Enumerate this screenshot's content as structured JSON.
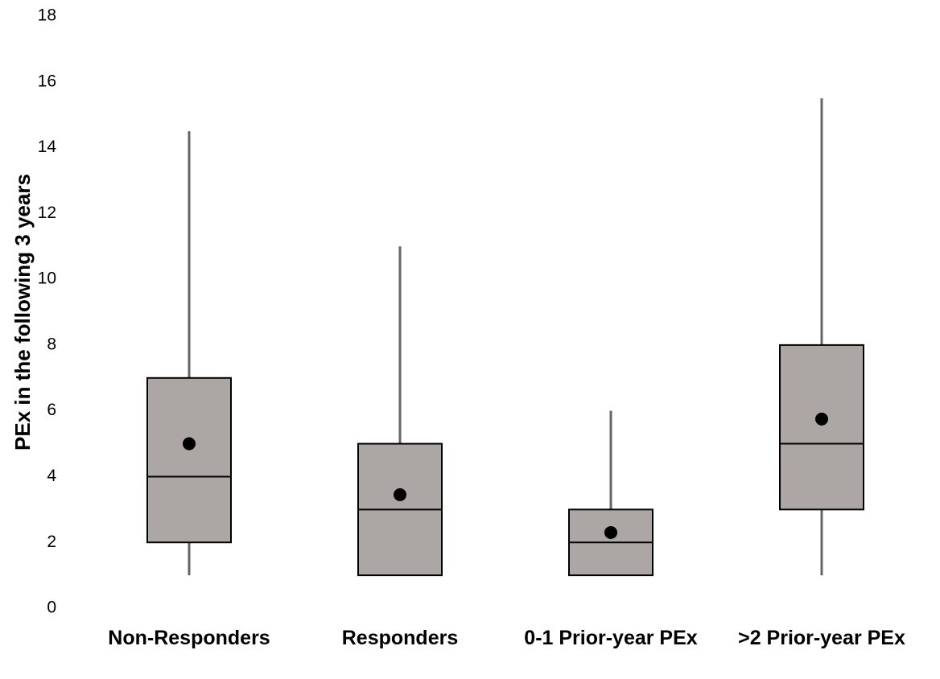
{
  "chart_data": {
    "type": "box",
    "y_label": "PEx in the following 3 years",
    "categories": [
      "Non-Responders",
      "Responders",
      "0-1 Prior-year PEx",
      ">2 Prior-year PEx"
    ],
    "min": [
      1,
      1,
      1,
      1
    ],
    "q1": [
      2,
      1,
      1,
      3
    ],
    "median": [
      4,
      3,
      2,
      5
    ],
    "q3": [
      7,
      5,
      3,
      8
    ],
    "max": [
      14.5,
      11,
      6,
      15.5
    ],
    "mean": [
      5,
      3.45,
      2.3,
      5.75
    ],
    "box_color": "#aca7a5",
    "whisker_color": "#666666",
    "mean_color": "#000000",
    "ylim": [
      0,
      18
    ],
    "yticks": [
      0,
      2,
      4,
      6,
      8,
      10,
      12,
      14,
      16,
      18
    ],
    "grid": false
  }
}
